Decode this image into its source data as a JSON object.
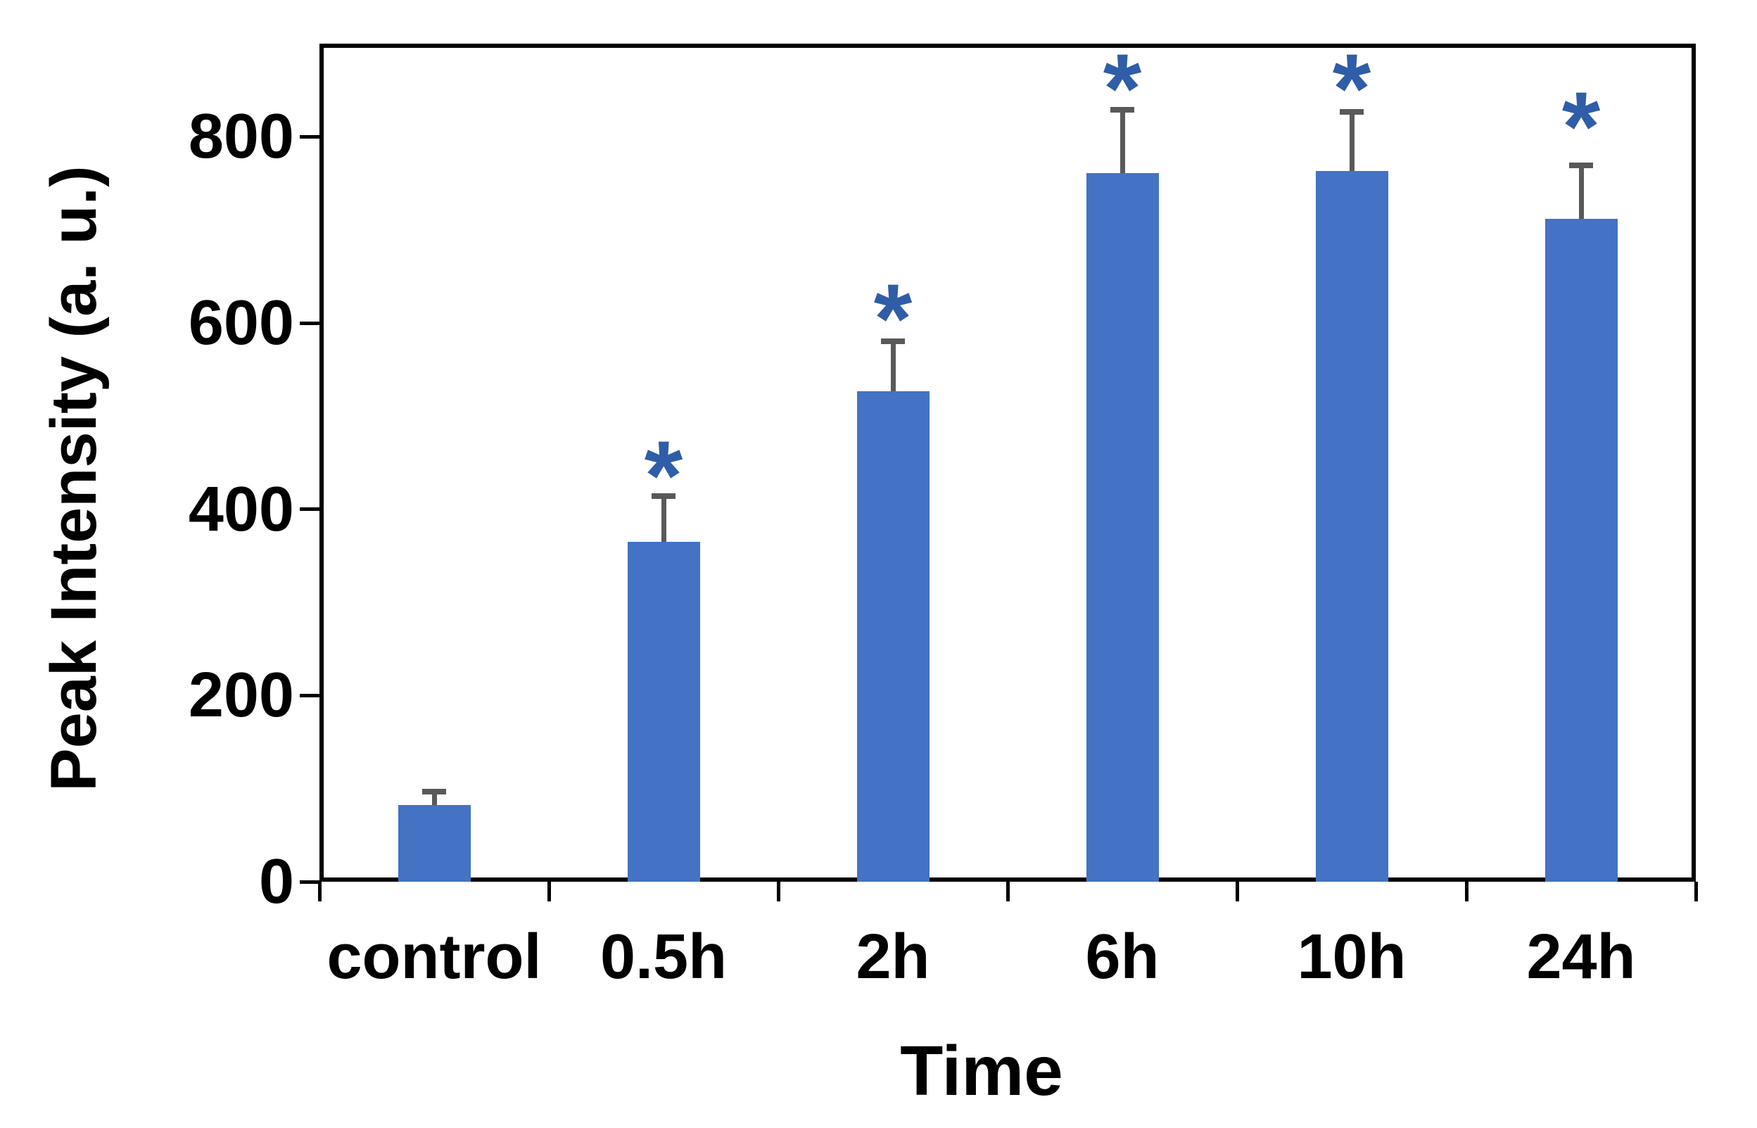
{
  "chart_data": {
    "type": "bar",
    "title": "",
    "xlabel": "Time",
    "ylabel": "Peak Intensity (a. u.)",
    "categories": [
      "control",
      "0.5h",
      "2h",
      "6h",
      "10h",
      "24h"
    ],
    "values": [
      82,
      365,
      527,
      761,
      763,
      712
    ],
    "errors_upper": [
      18,
      52,
      56,
      71,
      67,
      60
    ],
    "significant": [
      false,
      true,
      true,
      true,
      true,
      true
    ],
    "significance_marker": "*",
    "asterisk_y": [
      null,
      459,
      628,
      875,
      875,
      834
    ],
    "ylim": [
      0,
      900
    ],
    "yticks": [
      0,
      200,
      400,
      600,
      800
    ],
    "grid": false,
    "legend_position": "none",
    "colors": {
      "bar": "#4472C4",
      "error_bar": "#595959",
      "asterisk": "#2F5DA8",
      "axis": "#000000",
      "background": "#FFFFFF"
    }
  }
}
